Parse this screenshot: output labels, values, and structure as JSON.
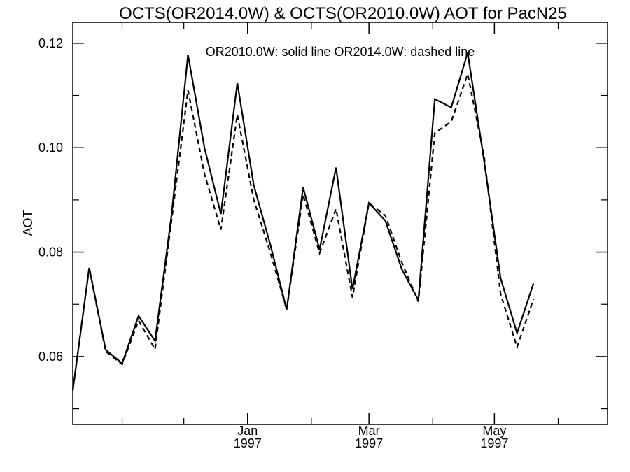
{
  "chart_data": {
    "type": "line",
    "title": "OCTS(OR2014.0W) & OCTS(OR2010.0W)  AOT for PacN25",
    "annotation": "OR2010.0W: solid line   OR2014.0W: dashed line",
    "ylabel": "AOT",
    "xlabel": "",
    "x_range": [
      "1996-10-08",
      "1997-06-25"
    ],
    "ylim": [
      0.047,
      0.124
    ],
    "y_ticks": [
      {
        "value": 0.06,
        "label": "0.06"
      },
      {
        "value": 0.08,
        "label": "0.08"
      },
      {
        "value": 0.1,
        "label": "0.10"
      },
      {
        "value": 0.12,
        "label": "0.12"
      }
    ],
    "x_ticks": [
      {
        "date": "1997-01-01",
        "month": "Jan",
        "year": "1997"
      },
      {
        "date": "1997-03-01",
        "month": "Mar",
        "year": "1997"
      },
      {
        "date": "1997-05-01",
        "month": "May",
        "year": "1997"
      }
    ],
    "x": [
      "1996-10-08",
      "1996-10-16",
      "1996-10-24",
      "1996-11-01",
      "1996-11-09",
      "1996-11-17",
      "1996-11-25",
      "1996-12-03",
      "1996-12-11",
      "1996-12-19",
      "1996-12-27",
      "1997-01-04",
      "1997-01-12",
      "1997-01-20",
      "1997-01-28",
      "1997-02-05",
      "1997-02-13",
      "1997-02-21",
      "1997-03-01",
      "1997-03-09",
      "1997-03-17",
      "1997-03-25",
      "1997-04-02",
      "1997-04-10",
      "1997-04-18",
      "1997-04-26",
      "1997-05-04",
      "1997-05-12",
      "1997-05-20",
      "1997-05-28",
      "1997-06-05",
      "1997-06-13",
      "1997-06-21",
      "1997-06-25"
    ],
    "series": [
      {
        "name": "OR2010.0W",
        "style": "solid",
        "values": [
          0.0535,
          0.077,
          0.0613,
          0.0587,
          0.0678,
          0.063,
          0.087,
          0.1178,
          0.1,
          0.0873,
          0.1124,
          0.0928,
          0.0815,
          0.069,
          0.0924,
          0.0805,
          0.0962,
          0.0729,
          0.0894,
          0.086,
          0.0767,
          0.0708,
          0.1093,
          0.1077,
          0.1182,
          0.0974,
          0.075,
          0.0645,
          0.074,
          null,
          null,
          null,
          null,
          null
        ]
      },
      {
        "name": "OR2014.0W",
        "style": "dashed",
        "values": [
          0.0535,
          0.077,
          0.061,
          0.0585,
          0.0669,
          0.0614,
          0.086,
          0.111,
          0.095,
          0.0843,
          0.1063,
          0.09,
          0.08,
          0.069,
          0.091,
          0.0798,
          0.0883,
          0.0713,
          0.0894,
          0.087,
          0.078,
          0.0705,
          0.1028,
          0.105,
          0.1141,
          0.0983,
          0.072,
          0.0618,
          0.071,
          null,
          null,
          null,
          null,
          null
        ]
      }
    ]
  }
}
